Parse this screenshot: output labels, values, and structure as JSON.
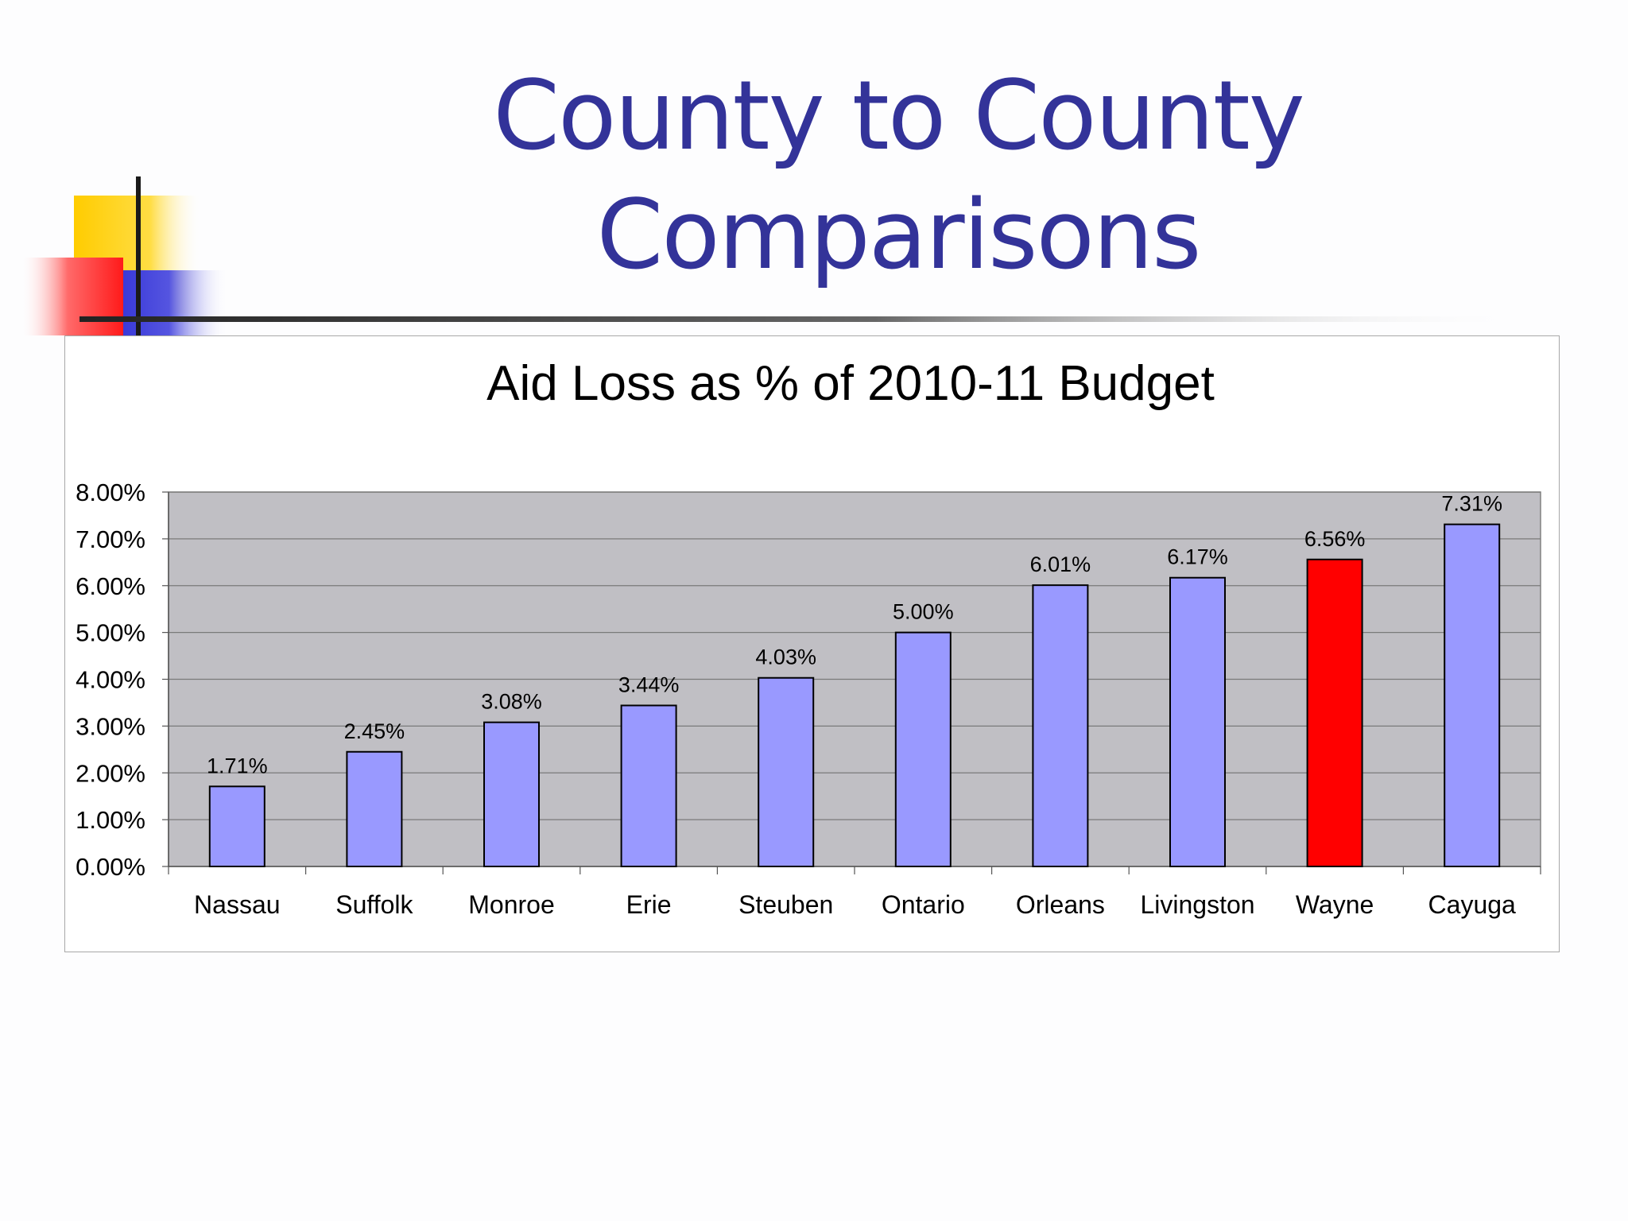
{
  "slide": {
    "title_line1": "County to County",
    "title_line2": "Comparisons"
  },
  "colors": {
    "title": "#333399",
    "bar_default": "#9999ff",
    "bar_highlight": "#ff0000",
    "plot_area": "#c0bfc4"
  },
  "chart_data": {
    "type": "bar",
    "title": "Aid Loss as % of 2010-11 Budget",
    "xlabel": "",
    "ylabel": "",
    "categories": [
      "Nassau",
      "Suffolk",
      "Monroe",
      "Erie",
      "Steuben",
      "Ontario",
      "Orleans",
      "Livingston",
      "Wayne",
      "Cayuga"
    ],
    "values": [
      1.71,
      2.45,
      3.08,
      3.44,
      4.03,
      5.0,
      6.01,
      6.17,
      6.56,
      7.31
    ],
    "data_labels": [
      "1.71%",
      "2.45%",
      "3.08%",
      "3.44%",
      "4.03%",
      "5.00%",
      "6.01%",
      "6.17%",
      "6.56%",
      "7.31%"
    ],
    "highlight": "Wayne",
    "ylim": [
      0,
      8
    ],
    "yticks": [
      0,
      1,
      2,
      3,
      4,
      5,
      6,
      7,
      8
    ],
    "ytick_labels": [
      "0.00%",
      "1.00%",
      "2.00%",
      "3.00%",
      "4.00%",
      "5.00%",
      "6.00%",
      "7.00%",
      "8.00%"
    ],
    "grid": true,
    "legend": "none"
  }
}
